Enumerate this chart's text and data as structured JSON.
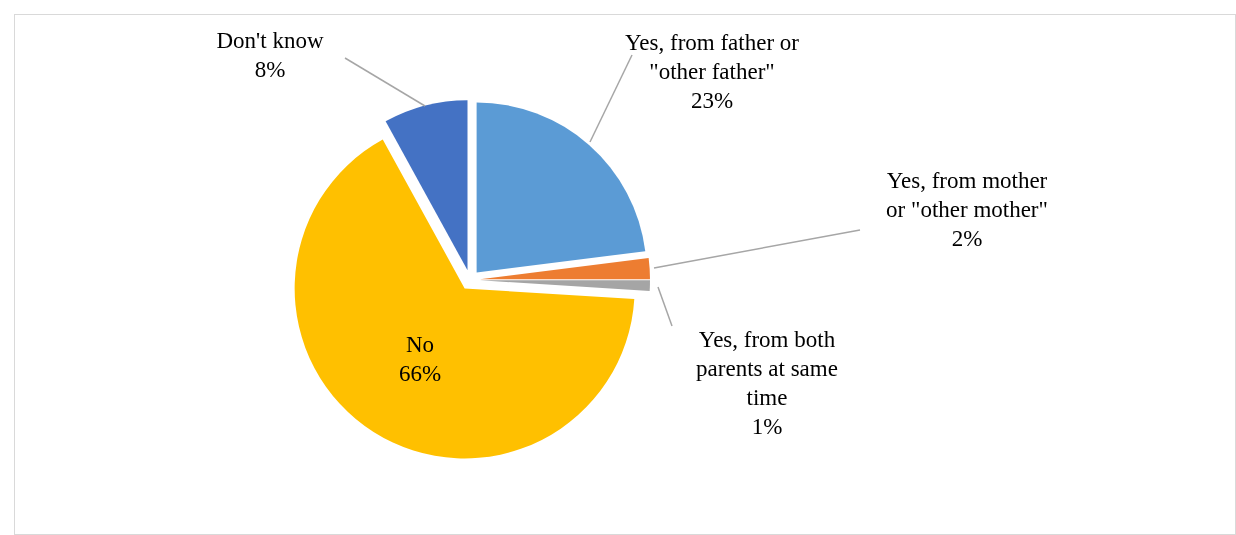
{
  "chart_data": {
    "type": "pie",
    "categories": [
      "Yes, from father or \"other father\"",
      "Yes, from mother or \"other mother\"",
      "Yes, from both parents at same time",
      "No",
      "Don't know"
    ],
    "values": [
      23,
      2,
      1,
      66,
      8
    ],
    "value_labels": [
      "23%",
      "2%",
      "1%",
      "66%",
      "8%"
    ],
    "colors": [
      "#5b9bd5",
      "#ed7d31",
      "#a5a5a5",
      "#ffc000",
      "#4472c4"
    ]
  }
}
